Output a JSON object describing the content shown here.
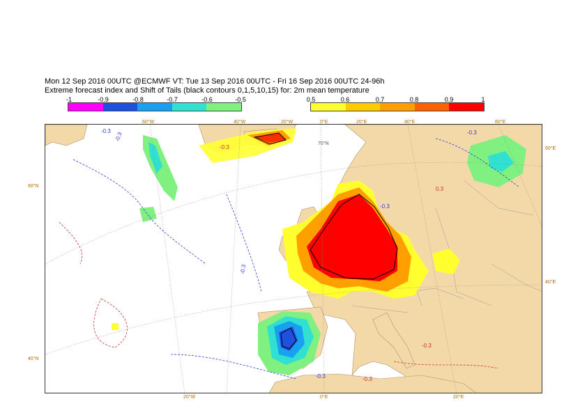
{
  "header": {
    "line1": "Mon 12 Sep 2016 00UTC @ECMWF VT: Tue 13 Sep 2016 00UTC - Fri 16 Sep 2016 00UTC  24-96h",
    "line2": "Extreme forecast index and Shift of Tails (black contours 0,1,5,10,15) for: 2m mean temperature"
  },
  "legend_negative": {
    "ticks": [
      "-1",
      "-0.9",
      "-0.8",
      "-0.7",
      "-0.6",
      "-0.5"
    ],
    "colors": [
      "#ff00ff",
      "#2050e0",
      "#1aa0f0",
      "#30e0d0",
      "#80f080"
    ]
  },
  "legend_positive": {
    "ticks": [
      "0.5",
      "0.6",
      "0.7",
      "0.8",
      "0.9",
      "1"
    ],
    "colors": [
      "#ffff30",
      "#ffcc00",
      "#ffa000",
      "#ff6000",
      "#ff0000"
    ]
  },
  "map": {
    "colors": {
      "land": "#f3d9a8",
      "sea": "#ffffff",
      "border": "#9a9a9a",
      "graticule": "#8a8a8a"
    },
    "top_labels": [
      "60°W",
      "40°W",
      "20°W",
      "0°E",
      "20°E",
      "40°E",
      "60°E"
    ],
    "bottom_labels": [
      "20°W",
      "0°E",
      "20°E"
    ],
    "left_labels": [
      "60°N",
      "40°N"
    ],
    "right_labels": [
      "60°E",
      "40°E"
    ],
    "inner_labels": [
      "70°N"
    ],
    "contour_labels": [
      "-0.3",
      "-0.3",
      "-0.3",
      "-0.3",
      "-0.3",
      "-0.3",
      "-0.3",
      "0.3",
      "-0.3",
      "-0.3"
    ]
  }
}
